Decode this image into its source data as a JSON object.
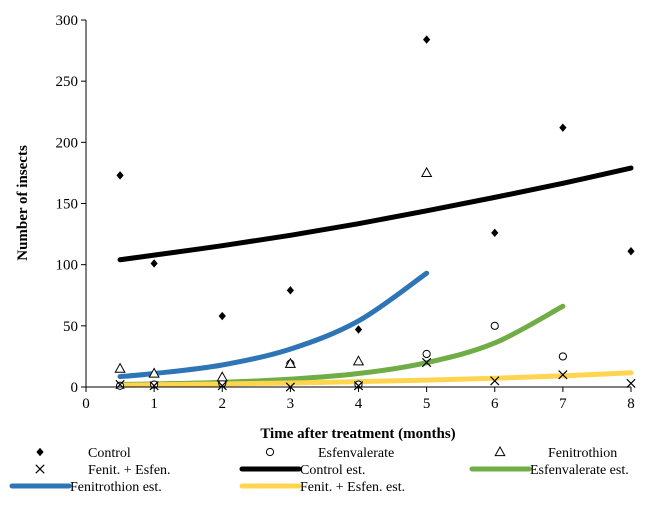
{
  "chart_data": {
    "type": "scatter",
    "xlabel": "Time after treatment (months)",
    "ylabel": "Number of insects",
    "xlim": [
      0,
      8
    ],
    "ylim": [
      0,
      300
    ],
    "xticks": [
      "0",
      "1",
      "2",
      "3",
      "4",
      "5",
      "6",
      "7",
      "8"
    ],
    "yticks": [
      "0",
      "50",
      "100",
      "150",
      "200",
      "250",
      "300"
    ],
    "grid": false,
    "legend_position": "bottom",
    "series": [
      {
        "name": "Control",
        "kind": "points",
        "marker": "diamond",
        "color": "#000000",
        "points": [
          [
            0.5,
            173
          ],
          [
            1,
            101
          ],
          [
            2,
            58
          ],
          [
            3,
            79
          ],
          [
            4,
            47
          ],
          [
            5,
            284
          ],
          [
            6,
            126
          ],
          [
            7,
            212
          ],
          [
            8,
            111
          ]
        ]
      },
      {
        "name": "Esfenvalerate",
        "kind": "points",
        "marker": "circle",
        "color": "#000000",
        "points": [
          [
            0.5,
            1
          ],
          [
            1,
            2
          ],
          [
            2,
            3
          ],
          [
            3,
            19
          ],
          [
            4,
            2
          ],
          [
            5,
            27
          ],
          [
            6,
            50
          ],
          [
            7,
            25
          ]
        ]
      },
      {
        "name": "Fenitrothion",
        "kind": "points",
        "marker": "triangle",
        "color": "#000000",
        "points": [
          [
            0.5,
            15
          ],
          [
            1,
            11
          ],
          [
            2,
            8
          ],
          [
            3,
            19
          ],
          [
            4,
            21
          ],
          [
            5,
            175
          ]
        ]
      },
      {
        "name": "Fenit. + Esfen.",
        "kind": "points",
        "marker": "x",
        "color": "#000000",
        "points": [
          [
            0.5,
            2
          ],
          [
            1,
            1
          ],
          [
            2,
            1
          ],
          [
            3,
            0
          ],
          [
            4,
            1
          ],
          [
            5,
            20
          ],
          [
            6,
            5
          ],
          [
            7,
            10
          ],
          [
            8,
            3
          ]
        ]
      },
      {
        "name": "Control est.",
        "kind": "line",
        "color": "#000000",
        "points": [
          [
            0.5,
            104
          ],
          [
            1,
            107.8
          ],
          [
            2,
            115.5
          ],
          [
            3,
            124
          ],
          [
            4,
            133.5
          ],
          [
            5,
            144
          ],
          [
            6,
            155
          ],
          [
            7,
            166.5
          ],
          [
            8,
            179
          ]
        ]
      },
      {
        "name": "Esfenvalerate est.",
        "kind": "line",
        "color": "#70AD47",
        "points": [
          [
            0.5,
            2
          ],
          [
            1,
            2.5
          ],
          [
            2,
            3.8
          ],
          [
            3,
            6.4
          ],
          [
            4,
            11
          ],
          [
            5,
            19.9
          ],
          [
            6,
            36
          ],
          [
            7,
            66
          ]
        ]
      },
      {
        "name": "Fenitrothion est.",
        "kind": "line",
        "color": "#2E75B6",
        "points": [
          [
            0.5,
            8.5
          ],
          [
            1,
            11
          ],
          [
            2,
            18
          ],
          [
            3,
            31
          ],
          [
            4,
            54
          ],
          [
            5,
            93
          ]
        ]
      },
      {
        "name": "Fenit. + Esfen. est.",
        "kind": "line",
        "color": "#FFD54F",
        "points": [
          [
            0.5,
            1.5
          ],
          [
            1,
            1.8
          ],
          [
            2,
            2.5
          ],
          [
            3,
            3.3
          ],
          [
            4,
            4.4
          ],
          [
            5,
            5.6
          ],
          [
            6,
            7.2
          ],
          [
            7,
            9.1
          ],
          [
            8,
            11.6
          ]
        ]
      }
    ]
  }
}
